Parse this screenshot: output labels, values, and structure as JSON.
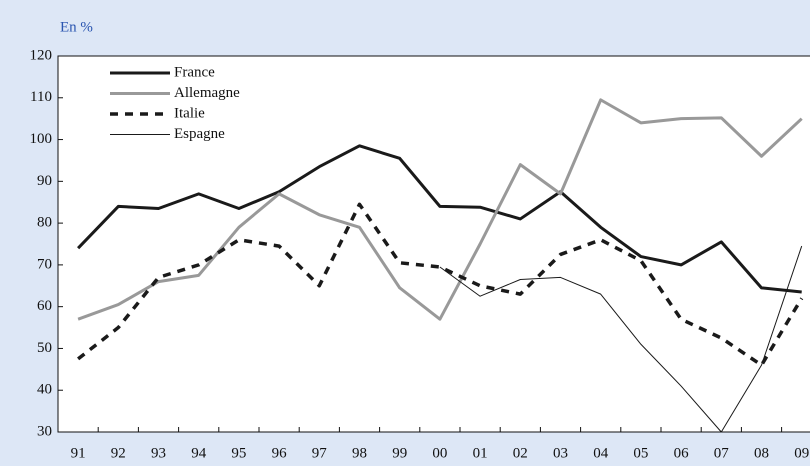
{
  "chart_data": {
    "type": "line",
    "subtitle": "En %",
    "categories": [
      "91",
      "92",
      "93",
      "94",
      "95",
      "96",
      "97",
      "98",
      "99",
      "00",
      "01",
      "02",
      "03",
      "04",
      "05",
      "06",
      "07",
      "08",
      "09"
    ],
    "series": [
      {
        "name": "France",
        "color": "#1a1a1a",
        "width": 3,
        "dashed": false,
        "values": [
          74,
          84,
          83.5,
          87,
          83.5,
          87.5,
          93.5,
          98.5,
          95.5,
          84,
          83.8,
          81,
          87.5,
          79,
          72,
          70,
          75.5,
          64.5,
          63.5
        ]
      },
      {
        "name": "Allemagne",
        "color": "#999999",
        "width": 3,
        "dashed": false,
        "values": [
          57,
          60.5,
          66,
          67.5,
          79,
          87,
          82,
          79,
          64.5,
          57,
          75,
          94,
          87,
          109.5,
          104,
          105,
          105.2,
          96,
          105
        ]
      },
      {
        "name": "Italie",
        "color": "#1a1a1a",
        "width": 3.5,
        "dashed": true,
        "values": [
          47.5,
          55,
          67,
          70,
          76,
          74.5,
          65,
          84.5,
          70.5,
          69.5,
          65,
          63,
          72.5,
          76,
          71,
          57,
          52.5,
          46,
          62
        ]
      },
      {
        "name": "Espagne",
        "color": "#1a1a1a",
        "width": 1,
        "dashed": false,
        "values": [
          null,
          null,
          null,
          null,
          null,
          null,
          null,
          null,
          null,
          69.5,
          62.5,
          66.5,
          67,
          63,
          51,
          41,
          30,
          46,
          74.5
        ]
      }
    ],
    "ylim": [
      30,
      120
    ],
    "yticks": [
      30,
      40,
      50,
      60,
      70,
      80,
      90,
      100,
      110,
      120
    ],
    "grid": false
  }
}
